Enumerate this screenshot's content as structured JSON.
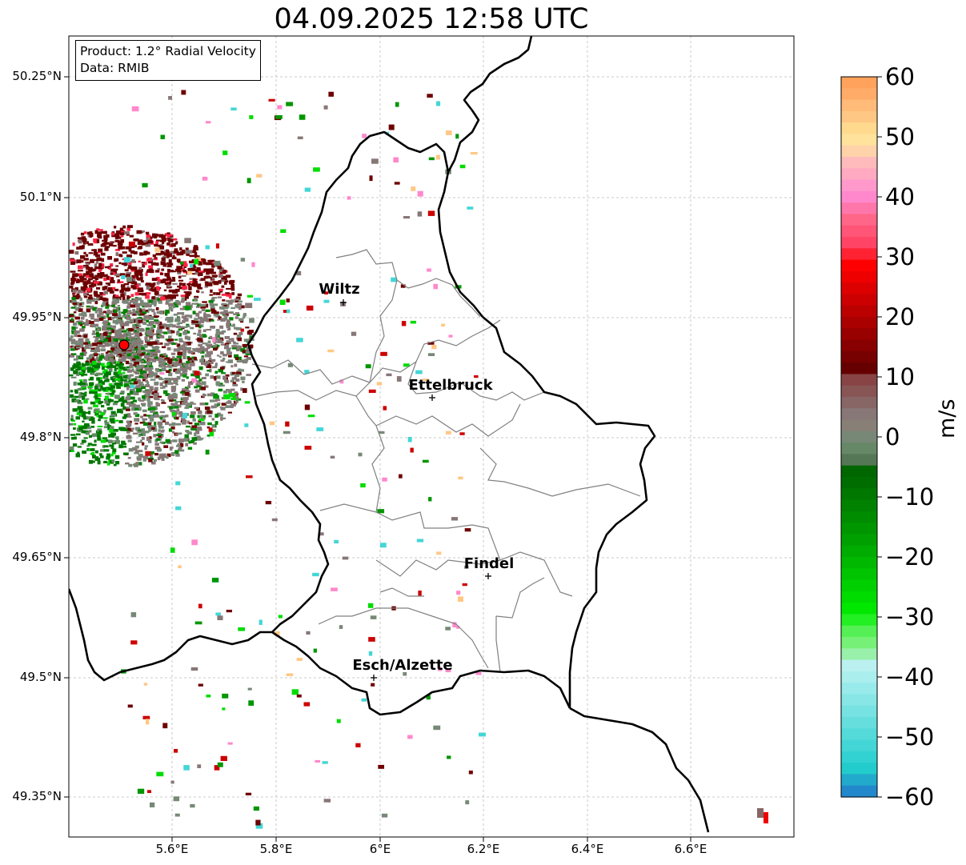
{
  "title": "04.09.2025 12:58 UTC",
  "info_box": {
    "product": "Product: 1.2° Radial Velocity",
    "data": "Data: RMIB"
  },
  "map": {
    "lat_labels": [
      "50.25°N",
      "50.1°N",
      "49.95°N",
      "49.8°N",
      "49.65°N",
      "49.5°N",
      "49.35°N"
    ],
    "lon_labels": [
      "5.6°E",
      "5.8°E",
      "6°E",
      "6.2°E",
      "6.4°E",
      "6.6°E"
    ],
    "cities": [
      "Wiltz",
      "Ettelbruck",
      "Findel",
      "Esch/Alzette"
    ],
    "radar_marker_color": "#ff0000",
    "border_color": "#000000",
    "canton_color": "#808080"
  },
  "colorbar": {
    "label": "m/s",
    "ticks": [
      "60",
      "50",
      "40",
      "30",
      "20",
      "10",
      "0",
      "−10",
      "−20",
      "−30",
      "−40",
      "−50",
      "−60"
    ],
    "range": [
      -60,
      60
    ],
    "colors_top_to_bottom": [
      "#ffa25c",
      "#ffac68",
      "#ffbb77",
      "#ffc784",
      "#ffd98e",
      "#ffe29c",
      "#ffd3aa",
      "#ffbbbb",
      "#ffaac0",
      "#ff99cc",
      "#ff88cc",
      "#ff77aa",
      "#ff6688",
      "#ff5577",
      "#ff4466",
      "#ff2233",
      "#ff0000",
      "#ee0000",
      "#dd0000",
      "#cc0000",
      "#bb0000",
      "#aa0000",
      "#990000",
      "#880000",
      "#770000",
      "#660000",
      "#884444",
      "#885555",
      "#886666",
      "#887777",
      "#888077",
      "#778877",
      "#668866",
      "#557755",
      "#006600",
      "#006d00",
      "#007800",
      "#008200",
      "#008c00",
      "#009600",
      "#00a000",
      "#00ac00",
      "#00b800",
      "#00c400",
      "#00d000",
      "#00dc00",
      "#00e800",
      "#22f022",
      "#55f055",
      "#77f077",
      "#99f0aa",
      "#bbf0f0",
      "#aaeeee",
      "#99eaea",
      "#88e6e6",
      "#77e2e2",
      "#66dede",
      "#55dada",
      "#44d6d6",
      "#33d2d2",
      "#22cccc",
      "#22aacc",
      "#2288cc"
    ]
  }
}
